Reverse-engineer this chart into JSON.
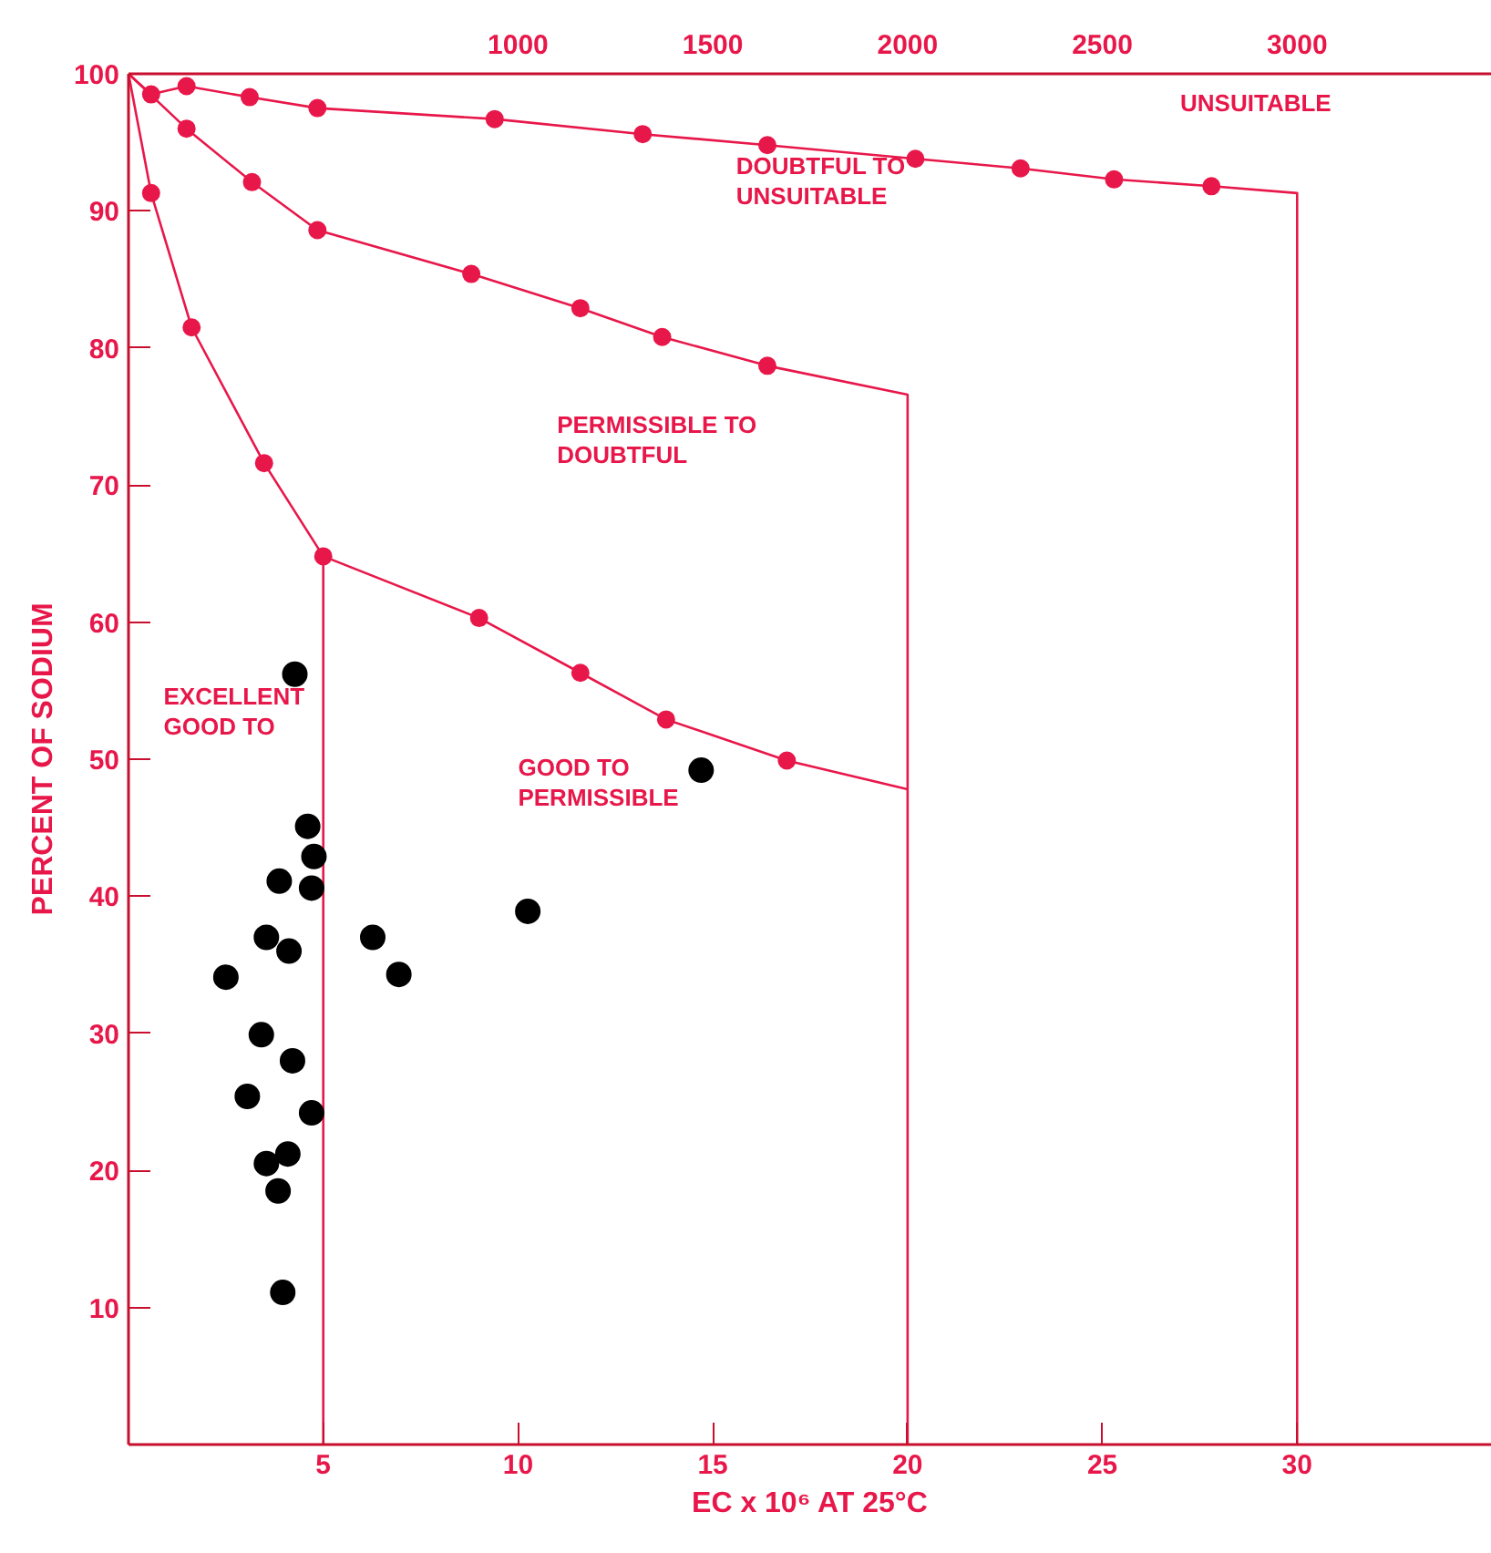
{
  "chart_data": {
    "type": "scatter",
    "xlabel": "EC x 10⁶ AT 25°C",
    "ylabel": "PERCENT OF SODIUM",
    "xlim": [
      0,
      35
    ],
    "ylim": [
      0,
      100
    ],
    "xticks": [
      5,
      10,
      15,
      20,
      25,
      30
    ],
    "yticks": [
      10,
      20,
      30,
      40,
      50,
      60,
      70,
      80,
      90,
      100
    ],
    "x2lim": [
      0,
      3500
    ],
    "x2ticks": [
      1000,
      1500,
      2000,
      2500,
      3000
    ],
    "marker": "circle",
    "series": [
      {
        "type": "line",
        "color": "#e8174a",
        "marker": "none",
        "x": [
          0,
          0.58,
          1.62,
          3.48,
          5,
          9.0,
          11.6,
          13.8,
          16.9,
          20
        ],
        "values": [
          100,
          91.3,
          81.5,
          71.6,
          64.8,
          60.3,
          56.3,
          52.9,
          49.9,
          47.8
        ]
      },
      {
        "type": "line",
        "color": "#e8174a",
        "marker": "none",
        "x": [
          5,
          5
        ],
        "values": [
          64.8,
          0
        ]
      },
      {
        "type": "line",
        "color": "#e8174a",
        "marker": "none",
        "x": [
          0,
          1.49,
          3.17,
          4.85,
          8.8,
          11.6,
          13.7,
          16.4,
          20,
          20
        ],
        "values": [
          100,
          96.0,
          92.1,
          88.6,
          85.4,
          82.9,
          80.8,
          78.7,
          76.6,
          0
        ]
      },
      {
        "type": "line",
        "color": "#e8174a",
        "marker": "none",
        "x": [
          0,
          0.58,
          1.49,
          3.11,
          4.85,
          9.4,
          13.2,
          16.4,
          20.2,
          22.9,
          25.3,
          27.8,
          30,
          30
        ],
        "values": [
          100,
          98.5,
          99.1,
          98.3,
          97.5,
          96.7,
          95.6,
          94.8,
          93.8,
          93.1,
          92.3,
          91.8,
          91.3,
          0
        ]
      },
      {
        "color": "#e8174a",
        "x": [
          0.58,
          1.62,
          3.48,
          5,
          9.0,
          11.6,
          13.8,
          16.9,
          1.49,
          3.17,
          4.85,
          8.8,
          11.6,
          13.7,
          16.4,
          0.58,
          1.49,
          3.11,
          4.85,
          9.4,
          13.2,
          16.4,
          20.2,
          22.9,
          25.3,
          27.8
        ],
        "values": [
          91.3,
          81.5,
          71.6,
          64.8,
          60.3,
          56.3,
          52.9,
          49.9,
          96.0,
          92.1,
          88.6,
          85.4,
          82.9,
          80.8,
          78.7,
          98.5,
          99.1,
          98.3,
          97.5,
          96.7,
          95.6,
          94.8,
          93.8,
          93.1,
          92.3,
          91.8
        ]
      },
      {
        "color": "#000000",
        "x": [
          4.27,
          4.6,
          4.76,
          4.7,
          3.87,
          3.54,
          4.12,
          2.5,
          6.27,
          6.94,
          10.25,
          14.7,
          3.41,
          4.21,
          3.05,
          4.7,
          3.54,
          4.09,
          3.84,
          3.96
        ],
        "values": [
          56.2,
          45.1,
          42.9,
          40.6,
          41.1,
          37.0,
          36.0,
          34.1,
          37.0,
          34.3,
          38.9,
          49.2,
          29.9,
          28.0,
          25.4,
          24.2,
          20.5,
          21.2,
          18.5,
          11.1
        ]
      }
    ],
    "annotations": [
      "UNSUITABLE",
      "DOUBTFUL TO\nUNSUITABLE",
      "PERMISSIBLE TO\nDOUBTFUL",
      "GOOD TO\nPERMISSIBLE",
      "EXCELLENT\nGOOD TO"
    ]
  }
}
